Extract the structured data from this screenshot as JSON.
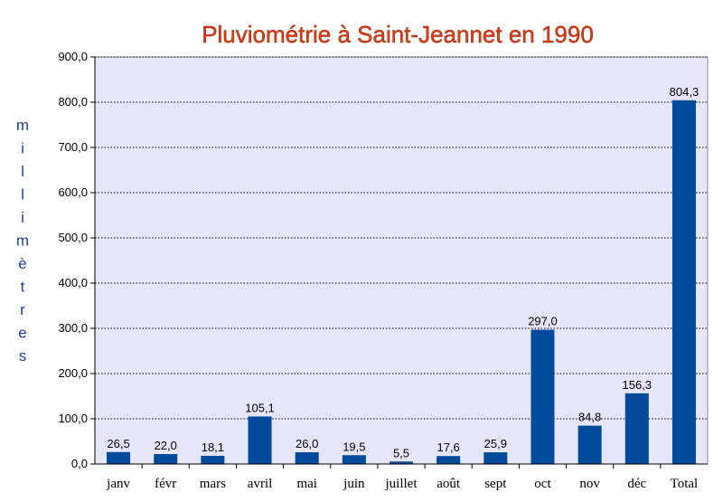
{
  "chart_data": {
    "type": "bar",
    "title": "Pluviométrie à Saint-Jeannet en 1990",
    "ylabel": "millimètres",
    "xlabel": "",
    "categories": [
      "janv",
      "févr",
      "mars",
      "avril",
      "mai",
      "juin",
      "juillet",
      "août",
      "sept",
      "oct",
      "nov",
      "déc",
      "Total"
    ],
    "values": [
      26.5,
      22.0,
      18.1,
      105.1,
      26.0,
      19.5,
      5.5,
      17.6,
      25.9,
      297.0,
      84.8,
      156.3,
      804.3
    ],
    "value_labels": [
      "26,5",
      "22,0",
      "18,1",
      "105,1",
      "26,0",
      "19,5",
      "5,5",
      "17,6",
      "25,9",
      "297,0",
      "84,8",
      "156,3",
      "804,3"
    ],
    "ylim": [
      0,
      900
    ],
    "yticks": [
      0,
      100,
      200,
      300,
      400,
      500,
      600,
      700,
      800,
      900
    ],
    "ytick_labels": [
      "0,0",
      "100,0",
      "200,0",
      "300,0",
      "400,0",
      "500,0",
      "600,0",
      "700,0",
      "800,0",
      "900,0"
    ],
    "grid": true,
    "legend": "none",
    "colors": {
      "bar": "#004a9b",
      "plot_background": "#e6e6fa",
      "gridline": "#000000",
      "title": "#e8380d",
      "ylabel": "#1c3fa6"
    }
  }
}
